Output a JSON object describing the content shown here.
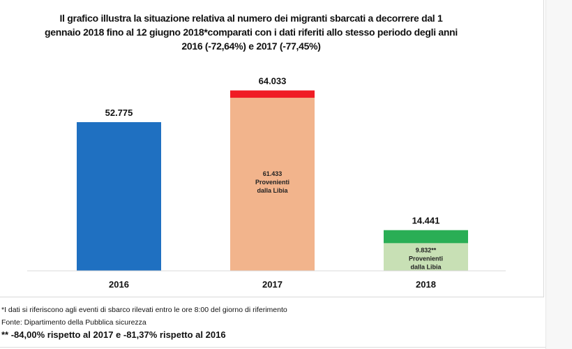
{
  "chart_data": {
    "type": "bar",
    "title": "Il grafico illustra la situazione relativa  al numero dei migranti sbarcati a decorrere dal 1 gennaio 2018 fino al 12 giugno 2018*comparati con i dati riferiti allo stesso periodo degli anni 2016 (-72,64%) e 2017 (-77,45%)",
    "categories": [
      "2016",
      "2017",
      "2018"
    ],
    "values": [
      52775,
      64033,
      14441
    ],
    "value_labels": [
      "52.775",
      "64.033",
      "14.441"
    ],
    "libia": [
      null,
      61433,
      9832
    ],
    "libia_labels": [
      null,
      [
        "61.433",
        "Provenienti",
        "dalla Libia"
      ],
      [
        "9.832**",
        "Provenienti",
        "dalla Libia"
      ]
    ],
    "colors": {
      "2016": "#1f70c1",
      "2017_total": "#f01c24",
      "2017_libia": "#f2b48c",
      "2018_total": "#2aae55",
      "2018_libia": "#c8e0b5"
    },
    "grid": false,
    "legend": "none"
  },
  "footnotes": [
    "*I dati si riferiscono agli eventi di sbarco rilevati entro le ore 8:00 del giorno di riferimento",
    " Fonte: Dipartimento della Pubblica sicurezza",
    "** -84,00% rispetto al 2017 e -81,37% rispetto al 2016"
  ]
}
